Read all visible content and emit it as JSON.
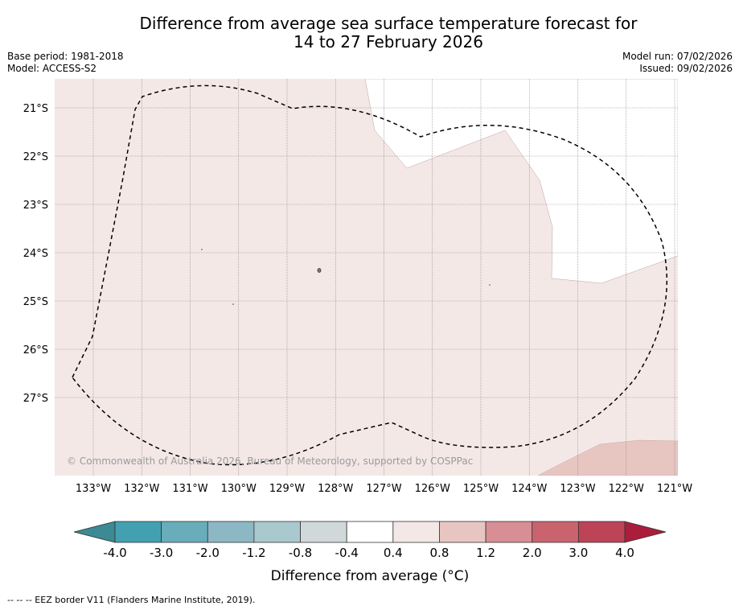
{
  "title": {
    "line1": "Difference from average sea surface temperature forecast for",
    "line2": "14 to 27 February 2026"
  },
  "meta": {
    "base_period": "Base period: 1981-2018",
    "model": "Model: ACCESS-S2",
    "model_run": "Model run: 07/02/2026",
    "issued": "Issued: 09/02/2026"
  },
  "map": {
    "lat_labels": [
      "21°S",
      "22°S",
      "23°S",
      "24°S",
      "25°S",
      "26°S",
      "27°S"
    ],
    "lon_labels": [
      "133°W",
      "132°W",
      "131°W",
      "130°W",
      "129°W",
      "128°W",
      "127°W",
      "126°W",
      "125°W",
      "124°W",
      "123°W",
      "122°W",
      "121°W"
    ],
    "copyright": "© Commonwealth of Australia 2026, Bureau of Meteorology, supported by COSPPac",
    "colors": {
      "pos_0.4_0.8": "#f4e8e7",
      "pos_0.8_1.2": "#e7c6c2",
      "neutral": "#ffffff"
    }
  },
  "colorbar": {
    "tick_labels": [
      "-4.0",
      "-3.0",
      "-2.0",
      "-1.2",
      "-0.8",
      "-0.4",
      "0.4",
      "0.8",
      "1.2",
      "2.0",
      "3.0",
      "4.0"
    ],
    "colors": [
      "#43a0b1",
      "#69adbb",
      "#8bb8c4",
      "#a9c9cf",
      "#d1d8d9",
      "#ffffff",
      "#f4e8e7",
      "#e7c6c2",
      "#d88e95",
      "#c9646f",
      "#bd4456"
    ],
    "under_color": "#3b8a94",
    "over_color": "#aa1e3c",
    "label": "Difference from average (°C)"
  },
  "footnote": "--  --  -- EEZ border V11 (Flanders Marine Institute, 2019)."
}
